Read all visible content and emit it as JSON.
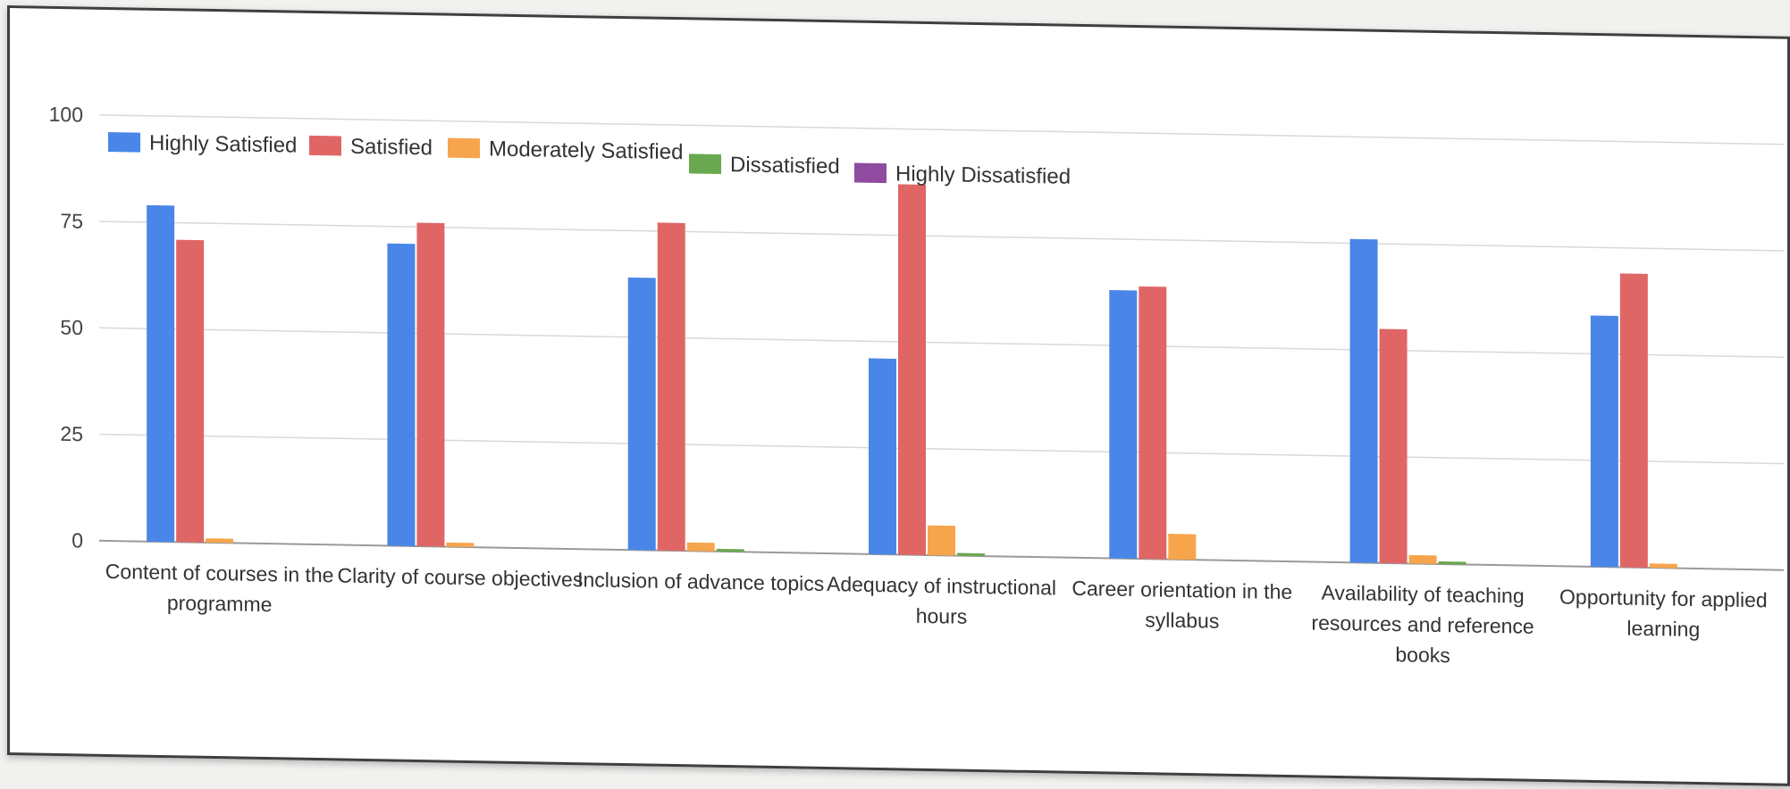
{
  "chart_data": {
    "type": "bar",
    "title": "",
    "xlabel": "",
    "ylabel": "",
    "ylim": [
      0,
      100
    ],
    "yticks": [
      0,
      25,
      50,
      75,
      100
    ],
    "grid": true,
    "legend_position": "top-left",
    "categories": [
      [
        "Content of courses in the",
        "programme"
      ],
      [
        "Clarity of course objectives"
      ],
      [
        "Inclusion of advance topics"
      ],
      [
        "Adequacy of instructional",
        "hours"
      ],
      [
        "Career orientation in the",
        "syllabus"
      ],
      [
        "Availability of teaching",
        "resources and reference",
        "books"
      ],
      [
        "Opportunity for applied",
        "learning"
      ]
    ],
    "series": [
      {
        "name": "Highly Satisfied",
        "color": "#4a86e8",
        "values": [
          79,
          71,
          64,
          46,
          63,
          76,
          59
        ]
      },
      {
        "name": "Satisfied",
        "color": "#e06666",
        "values": [
          71,
          76,
          77,
          87,
          64,
          55,
          69
        ]
      },
      {
        "name": "Moderately Satisfied",
        "color": "#f6a54c",
        "values": [
          1,
          1,
          2,
          7,
          6,
          2,
          1
        ]
      },
      {
        "name": "Dissatisfied",
        "color": "#6aa84f",
        "values": [
          0,
          0,
          0.5,
          0.5,
          0,
          0.3,
          0
        ]
      },
      {
        "name": "Highly Dissatisfied",
        "color": "#8e4b9f",
        "values": [
          0,
          0,
          0,
          0,
          0,
          0,
          0
        ]
      }
    ]
  }
}
